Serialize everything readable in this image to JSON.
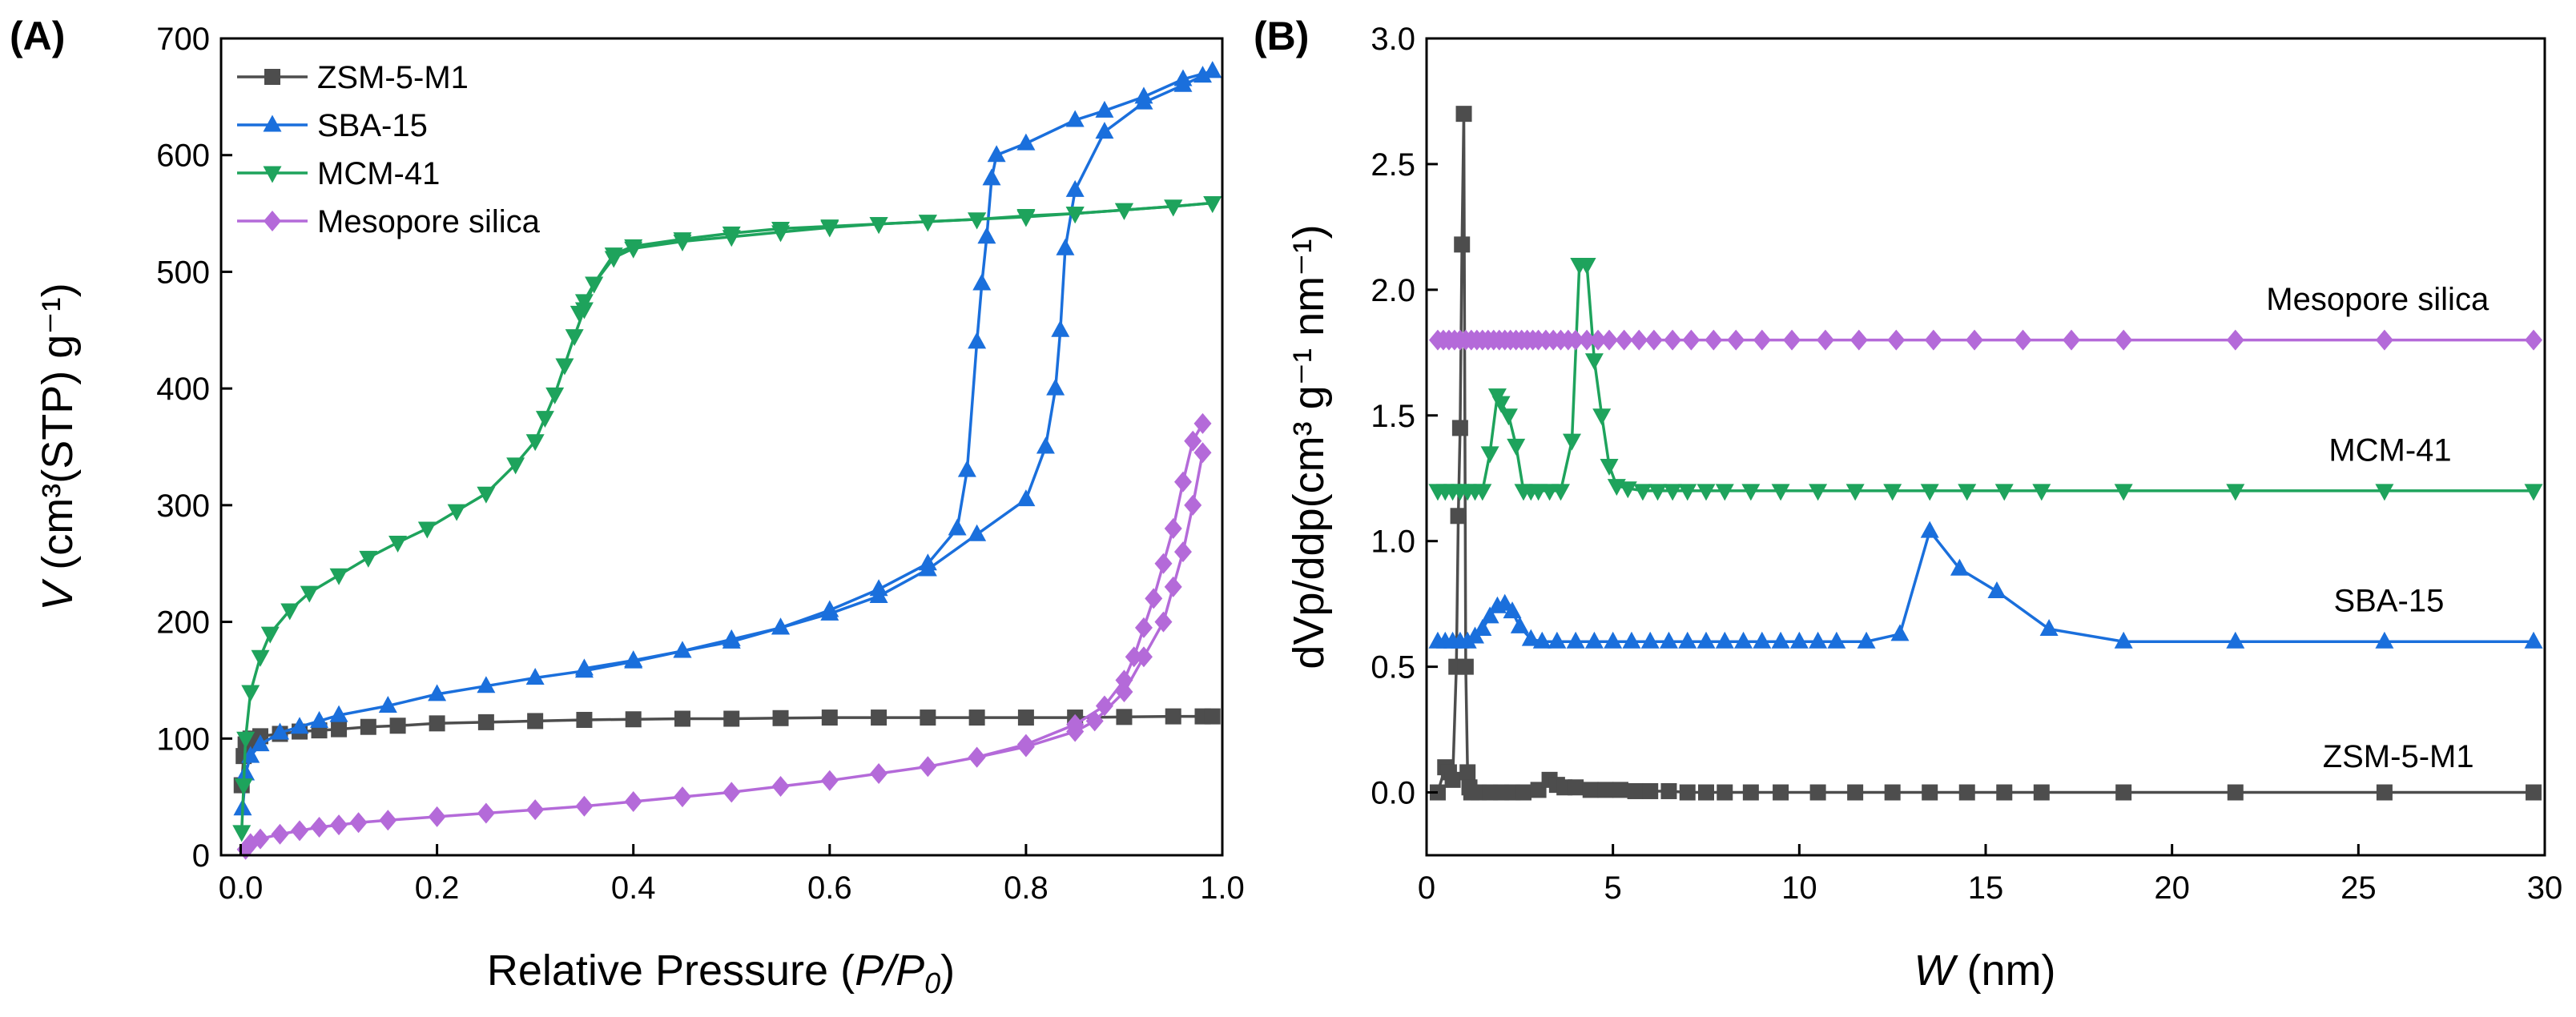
{
  "figure": {
    "panel_a": "(A)",
    "panel_b": "(B)"
  },
  "colors": {
    "ZSM-5-M1": "#4d4d4d",
    "SBA-15": "#1a6fdc",
    "MCM-41": "#1ea35c",
    "Mesopore silica": "#b46ad9"
  },
  "chart_data": [
    {
      "type": "line",
      "panel": "(A)",
      "xlabel": "Relative Pressure",
      "xlabel_italic": "P/P",
      "xlabel_sub": "0",
      "ylabel_var": "V",
      "ylabel": "(cm³(STP) g⁻¹)",
      "xlim": [
        -0.02,
        1.0
      ],
      "ylim": [
        0,
        700
      ],
      "xticks": [
        "0.0",
        "0.2",
        "0.4",
        "0.6",
        "0.8",
        "1.0"
      ],
      "yticks": [
        "0",
        "100",
        "200",
        "300",
        "400",
        "500",
        "600",
        "700"
      ],
      "legend": [
        "ZSM-5-M1",
        "SBA-15",
        "MCM-41",
        "Mesopore silica"
      ],
      "series": [
        {
          "name": "ZSM-5-M1",
          "marker": "square",
          "x": [
            0.001,
            0.003,
            0.005,
            0.01,
            0.02,
            0.04,
            0.06,
            0.08,
            0.1,
            0.13,
            0.16,
            0.2,
            0.25,
            0.3,
            0.35,
            0.4,
            0.45,
            0.5,
            0.55,
            0.6,
            0.65,
            0.7,
            0.75,
            0.8,
            0.85,
            0.9,
            0.95,
            0.98,
            0.99
          ],
          "y": [
            60,
            85,
            95,
            100,
            102,
            104,
            106,
            107,
            108,
            110,
            111,
            113,
            114,
            115,
            116,
            116.5,
            117,
            117,
            117.5,
            118,
            118,
            118,
            118,
            118,
            118,
            118.5,
            119,
            119,
            119
          ]
        },
        {
          "name": "SBA-15 adsorption",
          "marker": "triangle-up",
          "x": [
            0.002,
            0.005,
            0.01,
            0.02,
            0.04,
            0.06,
            0.08,
            0.1,
            0.15,
            0.2,
            0.25,
            0.3,
            0.35,
            0.4,
            0.45,
            0.5,
            0.55,
            0.6,
            0.65,
            0.7,
            0.75,
            0.8,
            0.82,
            0.83,
            0.835,
            0.84,
            0.85,
            0.88,
            0.92,
            0.96,
            0.98,
            0.99
          ],
          "y": [
            40,
            70,
            85,
            95,
            105,
            110,
            115,
            120,
            128,
            138,
            145,
            152,
            158,
            166,
            175,
            185,
            195,
            207,
            222,
            245,
            275,
            305,
            350,
            400,
            450,
            520,
            570,
            620,
            645,
            660,
            668,
            672
          ]
        },
        {
          "name": "SBA-15 desorption",
          "marker": "triangle-up",
          "x": [
            0.99,
            0.96,
            0.92,
            0.88,
            0.85,
            0.8,
            0.77,
            0.765,
            0.76,
            0.755,
            0.75,
            0.74,
            0.73,
            0.7,
            0.65,
            0.6,
            0.55,
            0.5,
            0.45,
            0.4,
            0.35
          ],
          "y": [
            672,
            665,
            650,
            638,
            630,
            610,
            600,
            580,
            530,
            490,
            440,
            330,
            280,
            250,
            228,
            210,
            195,
            183,
            175,
            167,
            160
          ]
        },
        {
          "name": "MCM-41 adsorption",
          "marker": "triangle-down",
          "x": [
            0.001,
            0.003,
            0.005,
            0.01,
            0.02,
            0.03,
            0.05,
            0.07,
            0.1,
            0.13,
            0.16,
            0.19,
            0.22,
            0.25,
            0.28,
            0.3,
            0.31,
            0.32,
            0.33,
            0.34,
            0.35,
            0.36,
            0.38,
            0.4,
            0.45,
            0.5,
            0.55,
            0.6,
            0.65,
            0.7,
            0.75,
            0.8,
            0.85,
            0.9,
            0.95,
            0.99
          ],
          "y": [
            20,
            60,
            100,
            140,
            170,
            190,
            210,
            225,
            240,
            255,
            268,
            280,
            295,
            310,
            335,
            355,
            375,
            395,
            420,
            445,
            468,
            490,
            512,
            520,
            526,
            530,
            534,
            538,
            541,
            543,
            545,
            548,
            550,
            553,
            556,
            559
          ]
        },
        {
          "name": "MCM-41 desorption",
          "marker": "triangle-down",
          "x": [
            0.99,
            0.95,
            0.9,
            0.85,
            0.8,
            0.75,
            0.7,
            0.65,
            0.6,
            0.55,
            0.5,
            0.45,
            0.4,
            0.38,
            0.36,
            0.35,
            0.345
          ],
          "y": [
            559,
            556,
            553,
            550,
            547,
            545,
            543,
            541,
            539,
            537,
            533,
            528,
            522,
            515,
            490,
            475,
            465
          ]
        },
        {
          "name": "Mesopore silica adsorption",
          "marker": "diamond",
          "x": [
            0.005,
            0.01,
            0.02,
            0.04,
            0.06,
            0.08,
            0.1,
            0.12,
            0.15,
            0.2,
            0.25,
            0.3,
            0.35,
            0.4,
            0.45,
            0.5,
            0.55,
            0.6,
            0.65,
            0.7,
            0.75,
            0.8,
            0.85,
            0.87,
            0.9,
            0.92,
            0.94,
            0.95,
            0.96,
            0.97,
            0.98
          ],
          "y": [
            5,
            10,
            14,
            18,
            21,
            24,
            26,
            28,
            30,
            33,
            36,
            39,
            42,
            46,
            50,
            54,
            59,
            64,
            70,
            76,
            84,
            93,
            106,
            115,
            140,
            170,
            200,
            230,
            260,
            300,
            345
          ]
        },
        {
          "name": "Mesopore silica desorption",
          "marker": "diamond",
          "x": [
            0.98,
            0.97,
            0.96,
            0.95,
            0.94,
            0.93,
            0.92,
            0.91,
            0.9,
            0.88,
            0.85,
            0.8,
            0.75
          ],
          "y": [
            370,
            355,
            320,
            280,
            250,
            220,
            195,
            170,
            150,
            128,
            112,
            95,
            84
          ]
        }
      ]
    },
    {
      "type": "line",
      "panel": "(B)",
      "xlabel_var": "W",
      "xlabel": "(nm)",
      "ylabel": "dVp/ddp(cm³ g⁻¹ nm⁻¹)",
      "xlim": [
        0,
        30
      ],
      "ylim": [
        -0.25,
        3.0
      ],
      "xticks": [
        "0",
        "5",
        "10",
        "15",
        "20",
        "25",
        "30"
      ],
      "yticks": [
        "0.0",
        "0.5",
        "1.0",
        "1.5",
        "2.0",
        "2.5",
        "3.0"
      ],
      "series_labels": [
        {
          "name": "Mesopore silica",
          "text": "Mesopore silica"
        },
        {
          "name": "MCM-41",
          "text": "MCM-41"
        },
        {
          "name": "SBA-15",
          "text": "SBA-15"
        },
        {
          "name": "ZSM-5-M1",
          "text": "ZSM-5-M1"
        }
      ],
      "series": [
        {
          "name": "ZSM-5-M1",
          "marker": "square",
          "x": [
            0.3,
            0.5,
            0.6,
            0.7,
            0.8,
            0.85,
            0.9,
            0.95,
            1.0,
            1.05,
            1.1,
            1.15,
            1.2,
            1.4,
            1.7,
            2.0,
            2.3,
            2.6,
            3.0,
            3.3,
            3.5,
            3.7,
            4.0,
            4.4,
            4.8,
            5.2,
            5.6,
            6.0,
            6.5,
            7.0,
            7.5,
            8.0,
            8.7,
            9.5,
            10.5,
            11.5,
            12.5,
            13.5,
            14.5,
            15.5,
            16.5,
            18.7,
            21.7,
            25.7,
            29.7
          ],
          "y": [
            0.0,
            0.1,
            0.08,
            0.05,
            0.5,
            1.1,
            1.45,
            2.18,
            2.7,
            0.5,
            0.08,
            0.02,
            0.0,
            0.0,
            0.0,
            0.0,
            0.0,
            0.0,
            0.01,
            0.05,
            0.03,
            0.02,
            0.02,
            0.01,
            0.01,
            0.01,
            0.005,
            0.005,
            0.005,
            0,
            0,
            0,
            0,
            0,
            0,
            0,
            0,
            0,
            0,
            0,
            0,
            0,
            0,
            0,
            0
          ]
        },
        {
          "name": "SBA-15",
          "marker": "triangle-up",
          "x": [
            0.3,
            0.5,
            0.7,
            0.9,
            1.1,
            1.3,
            1.5,
            1.7,
            1.9,
            2.1,
            2.3,
            2.5,
            2.8,
            3.1,
            3.5,
            4.0,
            4.5,
            5.0,
            5.5,
            6.0,
            6.5,
            7.0,
            7.5,
            8.0,
            8.5,
            9.0,
            9.5,
            10.0,
            10.5,
            11.0,
            11.8,
            12.7,
            13.5,
            14.3,
            15.3,
            16.7,
            18.7,
            21.7,
            25.7,
            29.7
          ],
          "y": [
            0.6,
            0.6,
            0.6,
            0.6,
            0.6,
            0.62,
            0.65,
            0.7,
            0.74,
            0.75,
            0.72,
            0.66,
            0.61,
            0.6,
            0.6,
            0.6,
            0.6,
            0.6,
            0.6,
            0.6,
            0.6,
            0.6,
            0.6,
            0.6,
            0.6,
            0.6,
            0.6,
            0.6,
            0.6,
            0.6,
            0.6,
            0.63,
            1.04,
            0.89,
            0.8,
            0.65,
            0.6,
            0.6,
            0.6,
            0.6
          ]
        },
        {
          "name": "MCM-41",
          "marker": "triangle-down",
          "x": [
            0.3,
            0.5,
            0.7,
            0.9,
            1.1,
            1.3,
            1.5,
            1.7,
            1.9,
            2.0,
            2.2,
            2.4,
            2.6,
            2.8,
            3.0,
            3.3,
            3.6,
            3.9,
            4.1,
            4.3,
            4.5,
            4.7,
            4.9,
            5.1,
            5.4,
            5.8,
            6.2,
            6.6,
            7.0,
            7.5,
            8.0,
            8.7,
            9.5,
            10.5,
            11.5,
            12.5,
            13.5,
            14.5,
            15.5,
            16.5,
            18.7,
            21.7,
            25.7,
            29.7
          ],
          "y": [
            1.2,
            1.2,
            1.2,
            1.2,
            1.2,
            1.2,
            1.2,
            1.35,
            1.58,
            1.55,
            1.5,
            1.38,
            1.2,
            1.2,
            1.2,
            1.2,
            1.2,
            1.4,
            2.1,
            2.1,
            1.72,
            1.5,
            1.3,
            1.22,
            1.21,
            1.2,
            1.2,
            1.2,
            1.2,
            1.2,
            1.2,
            1.2,
            1.2,
            1.2,
            1.2,
            1.2,
            1.2,
            1.2,
            1.2,
            1.2,
            1.2,
            1.2,
            1.2,
            1.2
          ]
        },
        {
          "name": "Mesopore silica",
          "marker": "diamond",
          "x": [
            0.3,
            0.45,
            0.6,
            0.75,
            0.9,
            1.05,
            1.2,
            1.35,
            1.5,
            1.65,
            1.8,
            1.95,
            2.1,
            2.25,
            2.4,
            2.55,
            2.7,
            2.85,
            3.0,
            3.2,
            3.4,
            3.6,
            3.8,
            4.0,
            4.3,
            4.6,
            4.9,
            5.3,
            5.7,
            6.1,
            6.6,
            7.1,
            7.7,
            8.3,
            9.0,
            9.8,
            10.7,
            11.6,
            12.6,
            13.6,
            14.7,
            16.0,
            17.3,
            18.7,
            21.7,
            25.7,
            29.7
          ],
          "y": [
            1.8,
            1.8,
            1.8,
            1.8,
            1.8,
            1.8,
            1.8,
            1.8,
            1.8,
            1.8,
            1.8,
            1.8,
            1.8,
            1.8,
            1.8,
            1.8,
            1.8,
            1.8,
            1.8,
            1.8,
            1.8,
            1.8,
            1.8,
            1.8,
            1.8,
            1.8,
            1.8,
            1.8,
            1.8,
            1.8,
            1.8,
            1.8,
            1.8,
            1.8,
            1.8,
            1.8,
            1.8,
            1.8,
            1.8,
            1.8,
            1.8,
            1.8,
            1.8,
            1.8,
            1.8,
            1.8,
            1.8
          ]
        }
      ]
    }
  ]
}
